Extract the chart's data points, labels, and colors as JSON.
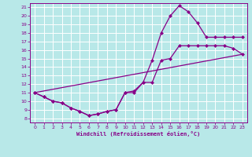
{
  "title": "",
  "xlabel": "Windchill (Refroidissement éolien,°C)",
  "bg_color": "#b8e8e8",
  "line_color": "#880088",
  "grid_color": "#ffffff",
  "xlim": [
    -0.5,
    23.5
  ],
  "ylim": [
    7.5,
    21.5
  ],
  "xticks": [
    0,
    1,
    2,
    3,
    4,
    5,
    6,
    7,
    8,
    9,
    10,
    11,
    12,
    13,
    14,
    15,
    16,
    17,
    18,
    19,
    20,
    21,
    22,
    23
  ],
  "yticks": [
    8,
    9,
    10,
    11,
    12,
    13,
    14,
    15,
    16,
    17,
    18,
    19,
    20,
    21
  ],
  "line_low": {
    "x": [
      0,
      1,
      2,
      3,
      4,
      5,
      6,
      7,
      8,
      9,
      10,
      11,
      12,
      13,
      14,
      15,
      16,
      17,
      18,
      19,
      20,
      21,
      22,
      23
    ],
    "y": [
      11.0,
      10.5,
      10.0,
      9.8,
      9.2,
      8.8,
      8.3,
      8.5,
      8.8,
      9.0,
      11.0,
      11.0,
      12.2,
      12.2,
      14.8,
      15.0,
      16.5,
      16.5,
      16.5,
      16.5,
      16.5,
      16.5,
      16.2,
      15.5
    ]
  },
  "line_high": {
    "x": [
      0,
      1,
      2,
      3,
      4,
      5,
      6,
      7,
      8,
      9,
      10,
      11,
      12,
      13,
      14,
      15,
      16,
      17,
      18,
      19,
      20,
      21,
      22,
      23
    ],
    "y": [
      11.0,
      10.5,
      10.0,
      9.8,
      9.2,
      8.8,
      8.3,
      8.5,
      8.8,
      9.0,
      11.0,
      11.2,
      12.2,
      14.8,
      18.0,
      20.0,
      21.2,
      20.5,
      19.2,
      17.5,
      17.5,
      17.5,
      17.5,
      17.5
    ]
  },
  "line_diag": {
    "x": [
      0,
      23
    ],
    "y": [
      11.0,
      15.5
    ]
  }
}
